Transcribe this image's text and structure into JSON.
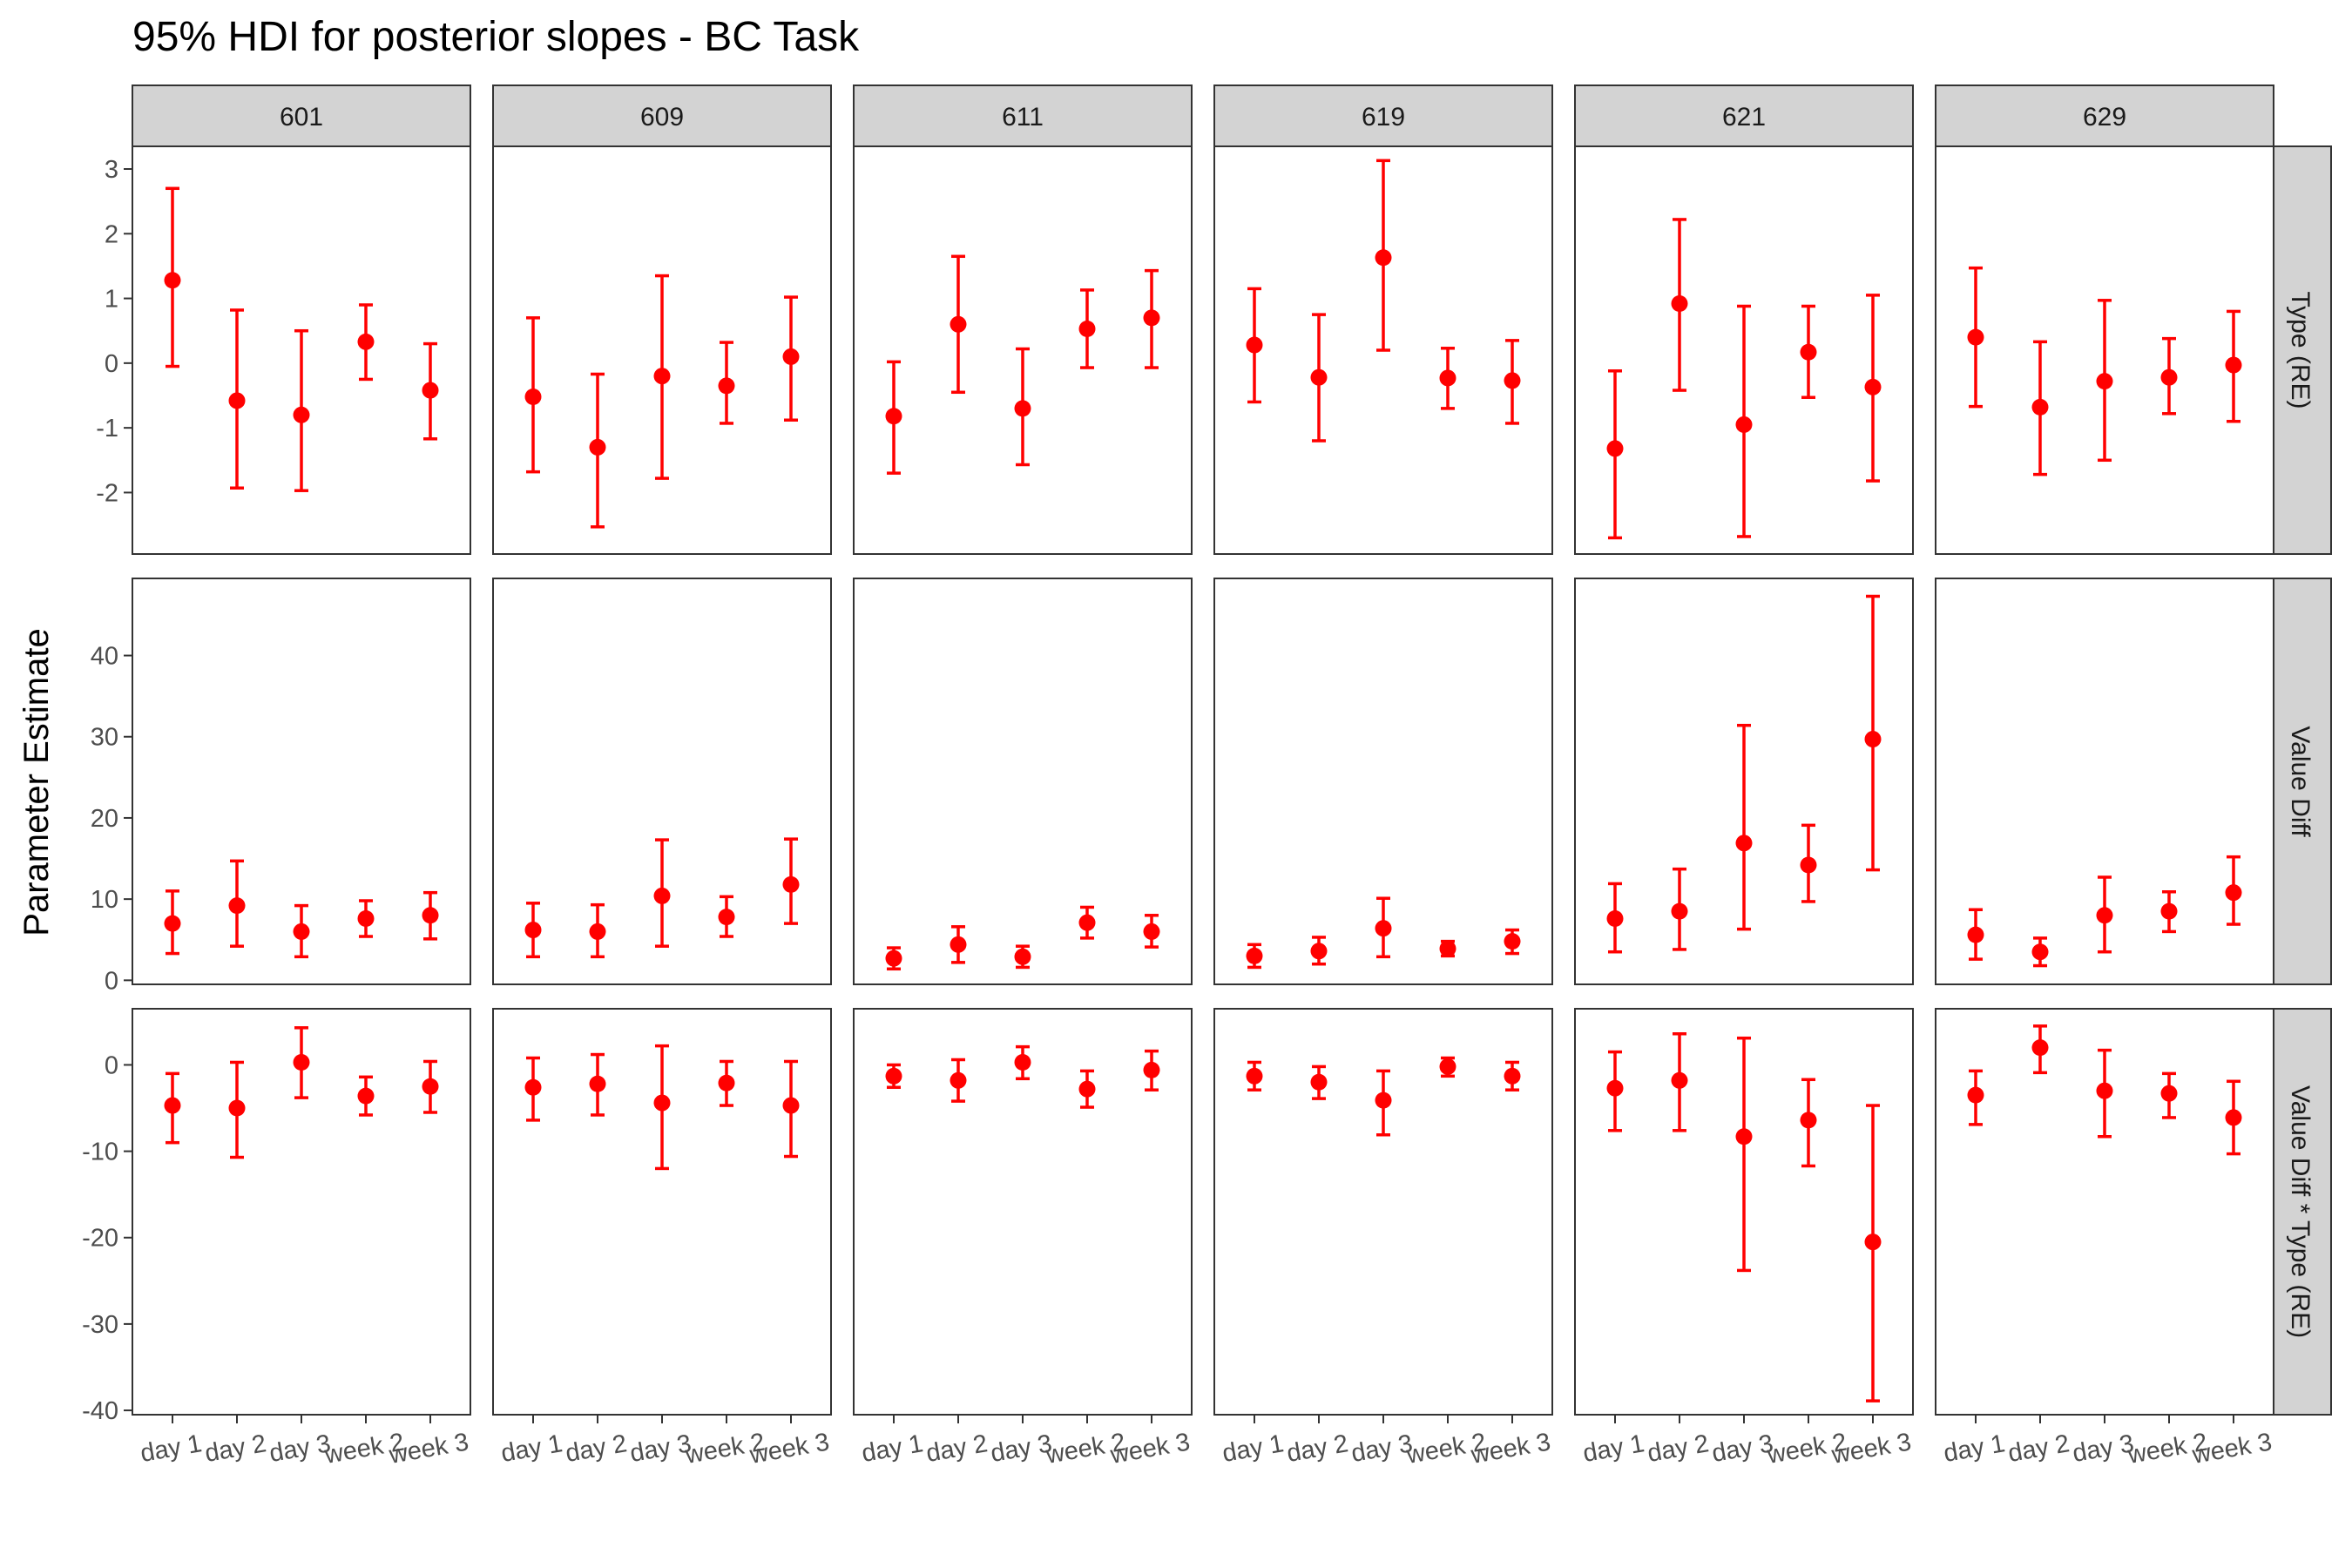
{
  "chart_data": {
    "type": "errorbar",
    "title": "95% HDI for posterior slopes - BC Task",
    "ylabel": "Parameter Estimate",
    "xlabel": "",
    "facet_columns": [
      "601",
      "609",
      "611",
      "619",
      "621",
      "629"
    ],
    "facet_rows": [
      "Type (RE)",
      "Value Diff",
      "Value Diff * Type (RE)"
    ],
    "x_categories": [
      "day 1",
      "day 2",
      "day 3",
      "week 2",
      "week 3"
    ],
    "grid": false,
    "colors": {
      "point": "#ff0000",
      "panel_border": "#333333",
      "strip_fill": "#d3d3d3"
    },
    "rows": [
      {
        "label": "Type (RE)",
        "ylim": [
          -2.95,
          3.35
        ],
        "yticks": [
          -2,
          -1,
          0,
          1,
          2,
          3
        ],
        "ytick_labels": [
          "-2",
          "-1",
          "0",
          "1",
          "2",
          "3"
        ],
        "panels": [
          {
            "facet": "601",
            "points": [
              {
                "x": "day 1",
                "y": 1.28,
                "lower": -0.05,
                "upper": 2.7
              },
              {
                "x": "day 2",
                "y": -0.58,
                "lower": -1.93,
                "upper": 0.82
              },
              {
                "x": "day 3",
                "y": -0.8,
                "lower": -1.97,
                "upper": 0.5
              },
              {
                "x": "week 2",
                "y": 0.33,
                "lower": -0.25,
                "upper": 0.9
              },
              {
                "x": "week 3",
                "y": -0.42,
                "lower": -1.17,
                "upper": 0.3
              }
            ]
          },
          {
            "facet": "609",
            "points": [
              {
                "x": "day 1",
                "y": -0.52,
                "lower": -1.68,
                "upper": 0.7
              },
              {
                "x": "day 2",
                "y": -1.3,
                "lower": -2.53,
                "upper": -0.17
              },
              {
                "x": "day 3",
                "y": -0.2,
                "lower": -1.78,
                "upper": 1.35
              },
              {
                "x": "week 2",
                "y": -0.35,
                "lower": -0.93,
                "upper": 0.32
              },
              {
                "x": "week 3",
                "y": 0.1,
                "lower": -0.88,
                "upper": 1.02
              }
            ]
          },
          {
            "facet": "611",
            "points": [
              {
                "x": "day 1",
                "y": -0.82,
                "lower": -1.7,
                "upper": 0.02
              },
              {
                "x": "day 2",
                "y": 0.6,
                "lower": -0.45,
                "upper": 1.65
              },
              {
                "x": "day 3",
                "y": -0.7,
                "lower": -1.57,
                "upper": 0.22
              },
              {
                "x": "week 2",
                "y": 0.53,
                "lower": -0.07,
                "upper": 1.13
              },
              {
                "x": "week 3",
                "y": 0.7,
                "lower": -0.07,
                "upper": 1.43
              }
            ]
          },
          {
            "facet": "619",
            "points": [
              {
                "x": "day 1",
                "y": 0.28,
                "lower": -0.6,
                "upper": 1.15
              },
              {
                "x": "day 2",
                "y": -0.22,
                "lower": -1.2,
                "upper": 0.75
              },
              {
                "x": "day 3",
                "y": 1.63,
                "lower": 0.2,
                "upper": 3.13
              },
              {
                "x": "week 2",
                "y": -0.23,
                "lower": -0.7,
                "upper": 0.23
              },
              {
                "x": "week 3",
                "y": -0.27,
                "lower": -0.93,
                "upper": 0.35
              }
            ]
          },
          {
            "facet": "621",
            "points": [
              {
                "x": "day 1",
                "y": -1.32,
                "lower": -2.7,
                "upper": -0.12
              },
              {
                "x": "day 2",
                "y": 0.92,
                "lower": -0.42,
                "upper": 2.22
              },
              {
                "x": "day 3",
                "y": -0.95,
                "lower": -2.68,
                "upper": 0.88
              },
              {
                "x": "week 2",
                "y": 0.17,
                "lower": -0.53,
                "upper": 0.88
              },
              {
                "x": "week 3",
                "y": -0.37,
                "lower": -1.82,
                "upper": 1.05
              }
            ]
          },
          {
            "facet": "629",
            "points": [
              {
                "x": "day 1",
                "y": 0.4,
                "lower": -0.67,
                "upper": 1.47
              },
              {
                "x": "day 2",
                "y": -0.68,
                "lower": -1.72,
                "upper": 0.33
              },
              {
                "x": "day 3",
                "y": -0.28,
                "lower": -1.5,
                "upper": 0.97
              },
              {
                "x": "week 2",
                "y": -0.22,
                "lower": -0.78,
                "upper": 0.38
              },
              {
                "x": "week 3",
                "y": -0.03,
                "lower": -0.9,
                "upper": 0.8
              }
            ]
          }
        ]
      },
      {
        "label": "Value Diff",
        "ylim": [
          -0.5,
          49.5
        ],
        "yticks": [
          0,
          10,
          20,
          30,
          40
        ],
        "ytick_labels": [
          "0",
          "10",
          "20",
          "30",
          "40"
        ],
        "panels": [
          {
            "facet": "601",
            "points": [
              {
                "x": "day 1",
                "y": 7.0,
                "lower": 3.3,
                "upper": 11.0
              },
              {
                "x": "day 2",
                "y": 9.2,
                "lower": 4.2,
                "upper": 14.7
              },
              {
                "x": "day 3",
                "y": 6.0,
                "lower": 2.9,
                "upper": 9.2
              },
              {
                "x": "week 2",
                "y": 7.6,
                "lower": 5.4,
                "upper": 9.8
              },
              {
                "x": "week 3",
                "y": 8.0,
                "lower": 5.1,
                "upper": 10.8
              }
            ]
          },
          {
            "facet": "609",
            "points": [
              {
                "x": "day 1",
                "y": 6.2,
                "lower": 2.9,
                "upper": 9.5
              },
              {
                "x": "day 2",
                "y": 6.0,
                "lower": 2.9,
                "upper": 9.3
              },
              {
                "x": "day 3",
                "y": 10.4,
                "lower": 4.2,
                "upper": 17.3
              },
              {
                "x": "week 2",
                "y": 7.8,
                "lower": 5.4,
                "upper": 10.3
              },
              {
                "x": "week 3",
                "y": 11.8,
                "lower": 7.0,
                "upper": 17.4
              }
            ]
          },
          {
            "facet": "611",
            "points": [
              {
                "x": "day 1",
                "y": 2.7,
                "lower": 1.4,
                "upper": 4.0
              },
              {
                "x": "day 2",
                "y": 4.4,
                "lower": 2.2,
                "upper": 6.6
              },
              {
                "x": "day 3",
                "y": 2.9,
                "lower": 1.6,
                "upper": 4.2
              },
              {
                "x": "week 2",
                "y": 7.1,
                "lower": 5.2,
                "upper": 9.0
              },
              {
                "x": "week 3",
                "y": 6.0,
                "lower": 4.1,
                "upper": 8.0
              }
            ]
          },
          {
            "facet": "619",
            "points": [
              {
                "x": "day 1",
                "y": 3.0,
                "lower": 1.6,
                "upper": 4.4
              },
              {
                "x": "day 2",
                "y": 3.6,
                "lower": 2.0,
                "upper": 5.3
              },
              {
                "x": "day 3",
                "y": 6.4,
                "lower": 2.9,
                "upper": 10.1
              },
              {
                "x": "week 2",
                "y": 3.9,
                "lower": 3.0,
                "upper": 4.8
              },
              {
                "x": "week 3",
                "y": 4.8,
                "lower": 3.3,
                "upper": 6.2
              }
            ]
          },
          {
            "facet": "621",
            "points": [
              {
                "x": "day 1",
                "y": 7.6,
                "lower": 3.5,
                "upper": 11.9
              },
              {
                "x": "day 2",
                "y": 8.5,
                "lower": 3.8,
                "upper": 13.7
              },
              {
                "x": "day 3",
                "y": 16.9,
                "lower": 6.3,
                "upper": 31.4
              },
              {
                "x": "week 2",
                "y": 14.2,
                "lower": 9.7,
                "upper": 19.1
              },
              {
                "x": "week 3",
                "y": 29.7,
                "lower": 13.6,
                "upper": 47.3
              }
            ]
          },
          {
            "facet": "629",
            "points": [
              {
                "x": "day 1",
                "y": 5.6,
                "lower": 2.6,
                "upper": 8.7
              },
              {
                "x": "day 2",
                "y": 3.5,
                "lower": 1.8,
                "upper": 5.2
              },
              {
                "x": "day 3",
                "y": 8.0,
                "lower": 3.5,
                "upper": 12.7
              },
              {
                "x": "week 2",
                "y": 8.5,
                "lower": 6.0,
                "upper": 10.9
              },
              {
                "x": "week 3",
                "y": 10.8,
                "lower": 6.9,
                "upper": 15.2
              }
            ]
          }
        ]
      },
      {
        "label": "Value Diff * Type (RE)",
        "ylim": [
          -40.5,
          6.5
        ],
        "yticks": [
          -40,
          -30,
          -20,
          -10,
          0
        ],
        "ytick_labels": [
          "-40",
          "-30",
          "-20",
          "-10",
          "0"
        ],
        "panels": [
          {
            "facet": "601",
            "points": [
              {
                "x": "day 1",
                "y": -4.7,
                "lower": -9.0,
                "upper": -1.0
              },
              {
                "x": "day 2",
                "y": -5.0,
                "lower": -10.7,
                "upper": 0.3
              },
              {
                "x": "day 3",
                "y": 0.3,
                "lower": -3.8,
                "upper": 4.3
              },
              {
                "x": "week 2",
                "y": -3.6,
                "lower": -5.8,
                "upper": -1.4
              },
              {
                "x": "week 3",
                "y": -2.5,
                "lower": -5.5,
                "upper": 0.4
              }
            ]
          },
          {
            "facet": "609",
            "points": [
              {
                "x": "day 1",
                "y": -2.6,
                "lower": -6.4,
                "upper": 0.8
              },
              {
                "x": "day 2",
                "y": -2.2,
                "lower": -5.8,
                "upper": 1.2
              },
              {
                "x": "day 3",
                "y": -4.4,
                "lower": -12.0,
                "upper": 2.2
              },
              {
                "x": "week 2",
                "y": -2.1,
                "lower": -4.7,
                "upper": 0.4
              },
              {
                "x": "week 3",
                "y": -4.7,
                "lower": -10.6,
                "upper": 0.4
              }
            ]
          },
          {
            "facet": "611",
            "points": [
              {
                "x": "day 1",
                "y": -1.3,
                "lower": -2.6,
                "upper": 0.0
              },
              {
                "x": "day 2",
                "y": -1.8,
                "lower": -4.2,
                "upper": 0.6
              },
              {
                "x": "day 3",
                "y": 0.3,
                "lower": -1.6,
                "upper": 2.1
              },
              {
                "x": "week 2",
                "y": -2.8,
                "lower": -4.9,
                "upper": -0.7
              },
              {
                "x": "week 3",
                "y": -0.6,
                "lower": -2.9,
                "upper": 1.6
              }
            ]
          },
          {
            "facet": "619",
            "points": [
              {
                "x": "day 1",
                "y": -1.3,
                "lower": -2.9,
                "upper": 0.3
              },
              {
                "x": "day 2",
                "y": -2.0,
                "lower": -3.9,
                "upper": -0.2
              },
              {
                "x": "day 3",
                "y": -4.1,
                "lower": -8.1,
                "upper": -0.7
              },
              {
                "x": "week 2",
                "y": -0.2,
                "lower": -1.3,
                "upper": 0.8
              },
              {
                "x": "week 3",
                "y": -1.3,
                "lower": -2.9,
                "upper": 0.3
              }
            ]
          },
          {
            "facet": "621",
            "points": [
              {
                "x": "day 1",
                "y": -2.7,
                "lower": -7.6,
                "upper": 1.5
              },
              {
                "x": "day 2",
                "y": -1.8,
                "lower": -7.6,
                "upper": 3.6
              },
              {
                "x": "day 3",
                "y": -8.3,
                "lower": -23.8,
                "upper": 3.1
              },
              {
                "x": "week 2",
                "y": -6.4,
                "lower": -11.7,
                "upper": -1.7
              },
              {
                "x": "week 3",
                "y": -20.5,
                "lower": -38.9,
                "upper": -4.7
              }
            ]
          },
          {
            "facet": "629",
            "points": [
              {
                "x": "day 1",
                "y": -3.5,
                "lower": -6.9,
                "upper": -0.7
              },
              {
                "x": "day 2",
                "y": 2.0,
                "lower": -0.9,
                "upper": 4.5
              },
              {
                "x": "day 3",
                "y": -3.0,
                "lower": -8.3,
                "upper": 1.7
              },
              {
                "x": "week 2",
                "y": -3.3,
                "lower": -6.1,
                "upper": -1.0
              },
              {
                "x": "week 3",
                "y": -6.1,
                "lower": -10.3,
                "upper": -1.9
              }
            ]
          }
        ]
      }
    ]
  }
}
